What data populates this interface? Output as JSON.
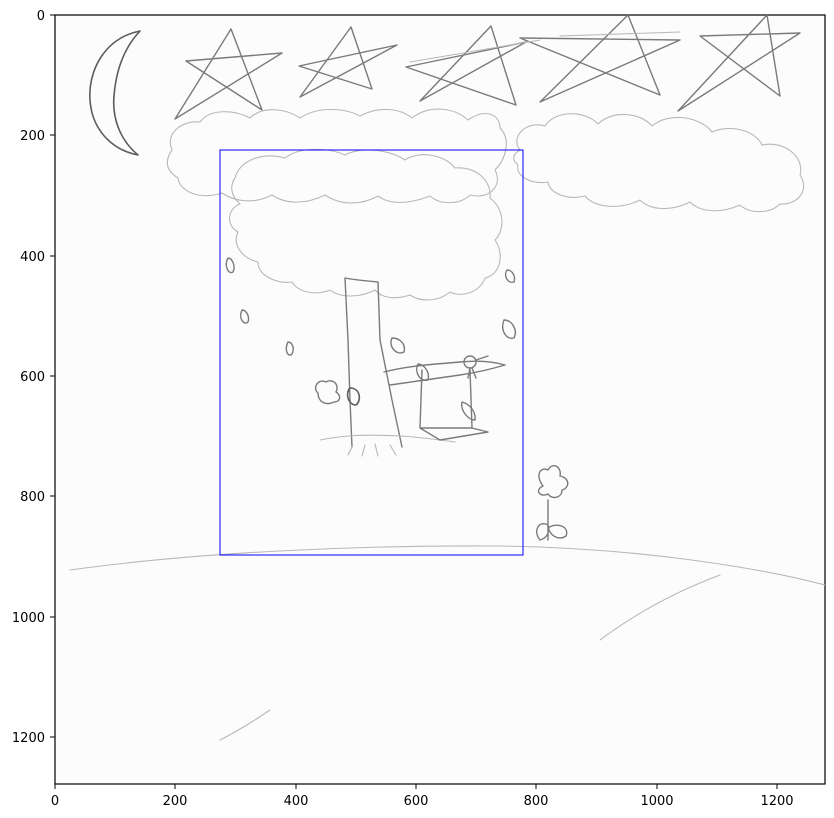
{
  "figure": {
    "x_ticks": [
      "0",
      "200",
      "400",
      "600",
      "800",
      "1000",
      "1200"
    ],
    "y_ticks": [
      "0",
      "200",
      "400",
      "600",
      "800",
      "1000",
      "1200"
    ],
    "bbox_color": "#0000ff",
    "sketch_color": "#7a7a7a"
  }
}
